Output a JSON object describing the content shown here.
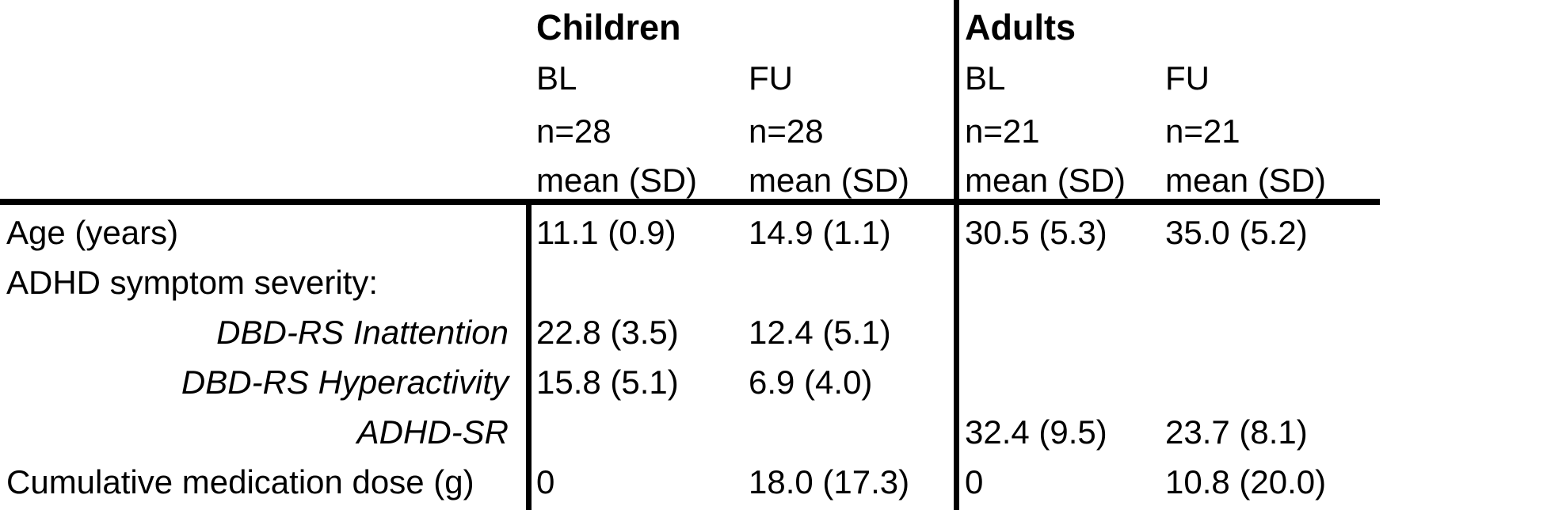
{
  "header": {
    "groups": [
      {
        "label": "Children",
        "columns": [
          {
            "timepoint": "BL",
            "n": "n=28",
            "stat": "mean (SD)"
          },
          {
            "timepoint": "FU",
            "n": "n=28",
            "stat": "mean (SD)"
          }
        ]
      },
      {
        "label": "Adults",
        "columns": [
          {
            "timepoint": "BL",
            "n": "n=21",
            "stat": "mean (SD)"
          },
          {
            "timepoint": "FU",
            "n": "n=21",
            "stat": "mean (SD)"
          }
        ]
      }
    ]
  },
  "rows": [
    {
      "label": "Age (years)",
      "values": [
        "11.1 (0.9)",
        "14.9 (1.1)",
        "30.5 (5.3)",
        "35.0 (5.2)"
      ]
    },
    {
      "label": "ADHD symptom severity:",
      "values": [
        "",
        "",
        "",
        ""
      ]
    },
    {
      "label": "DBD-RS Inattention",
      "values": [
        "22.8 (3.5)",
        "12.4 (5.1)",
        "",
        ""
      ]
    },
    {
      "label": "DBD-RS Hyperactivity",
      "values": [
        "15.8 (5.1)",
        "6.9 (4.0)",
        "",
        ""
      ]
    },
    {
      "label": "ADHD-SR",
      "values": [
        "",
        "",
        "32.4 (9.5)",
        "23.7 (8.1)"
      ]
    },
    {
      "label": "Cumulative medication dose (g)",
      "values": [
        "0",
        "18.0 (17.3)",
        "0",
        "10.8 (20.0)"
      ]
    }
  ],
  "colors": {
    "text": "#000000",
    "background": "#ffffff",
    "rule": "#000000"
  }
}
